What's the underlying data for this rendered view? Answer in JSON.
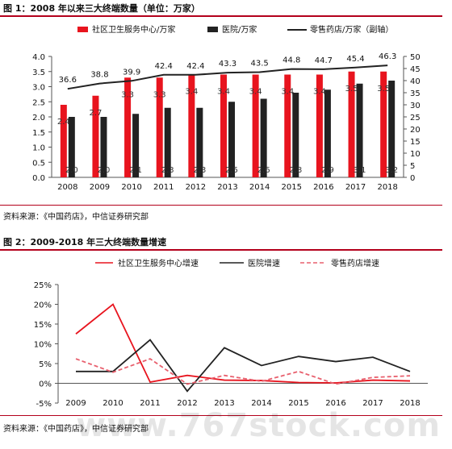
{
  "figure1": {
    "title": "图 1：2008 年以来三大终端数量（单位：万家）",
    "source": "资料来源：《中国药店》，中信证券研究部"
  },
  "figure2": {
    "title": "图 2：2009-2018 年三大终端数量增速",
    "source": "资料来源：《中国药店》，中信证券研究部"
  },
  "watermark": "www.767stock.com",
  "chart_data": [
    {
      "type": "bar",
      "categories": [
        "2008",
        "2009",
        "2010",
        "2011",
        "2012",
        "2013",
        "2014",
        "2015",
        "2016",
        "2017",
        "2018"
      ],
      "series": [
        {
          "name": "社区卫生服务中心/万家",
          "kind": "bar",
          "axis": "left",
          "color": "#e8141e",
          "values": [
            2.4,
            2.7,
            3.3,
            3.3,
            3.4,
            3.4,
            3.4,
            3.4,
            3.4,
            3.5,
            3.5
          ]
        },
        {
          "name": "医院/万家",
          "kind": "bar",
          "axis": "left",
          "color": "#222222",
          "values": [
            2.0,
            2.0,
            2.1,
            2.3,
            2.3,
            2.5,
            2.6,
            2.8,
            2.9,
            3.1,
            3.2
          ]
        },
        {
          "name": "零售药店/万家（副轴）",
          "kind": "line",
          "axis": "right",
          "color": "#222222",
          "values": [
            36.6,
            38.8,
            39.9,
            42.4,
            42.4,
            43.3,
            43.5,
            44.8,
            44.7,
            45.4,
            46.3
          ]
        }
      ],
      "left_axis": {
        "min": 0,
        "max": 4,
        "step": 0.5,
        "ticks": [
          "0.0",
          "0.5",
          "1.0",
          "1.5",
          "2.0",
          "2.5",
          "3.0",
          "3.5",
          "4.0"
        ]
      },
      "right_axis": {
        "min": 0,
        "max": 50,
        "step": 5,
        "ticks": [
          "0",
          "5",
          "10",
          "15",
          "20",
          "25",
          "30",
          "35",
          "40",
          "45",
          "50"
        ]
      },
      "legend_position": "top"
    },
    {
      "type": "line",
      "categories": [
        "2009",
        "2010",
        "2011",
        "2012",
        "2013",
        "2014",
        "2015",
        "2016",
        "2017",
        "2018"
      ],
      "series": [
        {
          "name": "社区卫生服务中心增速",
          "color": "#e8141e",
          "dash": "solid",
          "values": [
            12.5,
            20.0,
            0.3,
            2.0,
            0.8,
            0.7,
            0.2,
            0.1,
            0.8,
            0.6
          ]
        },
        {
          "name": "医院增速",
          "color": "#222222",
          "dash": "solid",
          "values": [
            3.0,
            3.0,
            11.0,
            -2.0,
            9.0,
            4.5,
            6.8,
            5.5,
            6.6,
            3.0
          ]
        },
        {
          "name": "零售药店增速",
          "color": "#e8606e",
          "dash": "dashed",
          "values": [
            6.2,
            2.8,
            6.2,
            -0.2,
            2.0,
            0.5,
            3.0,
            -0.2,
            1.5,
            1.9
          ]
        }
      ],
      "y_axis": {
        "min": -5,
        "max": 25,
        "step": 5,
        "ticks": [
          "-5%",
          "0%",
          "5%",
          "10%",
          "15%",
          "20%",
          "25%"
        ]
      },
      "legend_position": "top"
    }
  ]
}
